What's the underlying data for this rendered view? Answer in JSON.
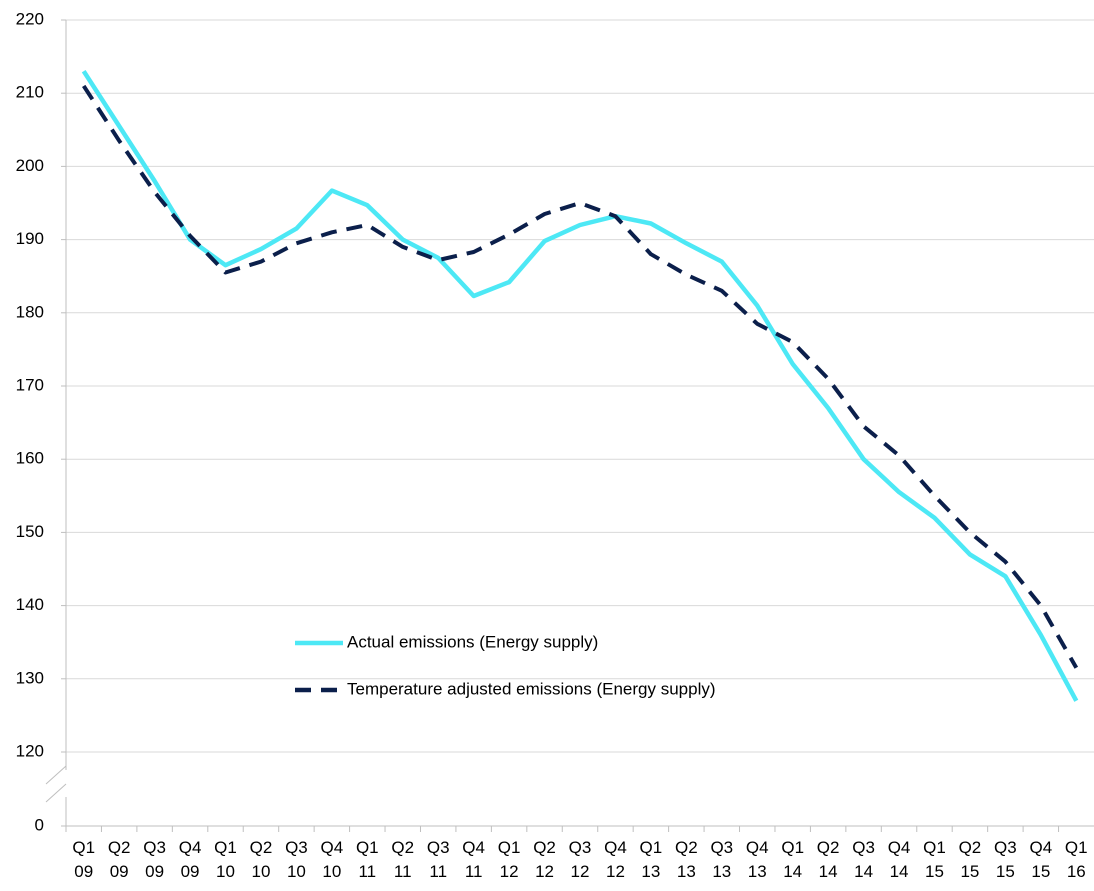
{
  "chart_data": {
    "type": "line",
    "categories": [
      "Q1 09",
      "Q2 09",
      "Q3 09",
      "Q4 09",
      "Q1 10",
      "Q2 10",
      "Q3 10",
      "Q4 10",
      "Q1 11",
      "Q2 11",
      "Q3 11",
      "Q4 11",
      "Q1 12",
      "Q2 12",
      "Q3 12",
      "Q4 12",
      "Q1 13",
      "Q2 13",
      "Q3 13",
      "Q4 13",
      "Q1 14",
      "Q2 14",
      "Q3 14",
      "Q4 14",
      "Q1 15",
      "Q2 15",
      "Q3 15",
      "Q4 15",
      "Q1 16"
    ],
    "series": [
      {
        "name": "Actual emissions (Energy supply)",
        "color": "#4de8f5",
        "dashed": false,
        "values": [
          213,
          205.5,
          198,
          190,
          186.5,
          188.7,
          191.5,
          196.7,
          194.7,
          190,
          187.5,
          182.3,
          184.2,
          189.8,
          192,
          193.2,
          192.2,
          189.5,
          187,
          181,
          173,
          167,
          160,
          155.5,
          152,
          147,
          144,
          136,
          127
        ]
      },
      {
        "name": "Temperature adjusted emissions (Energy supply)",
        "color": "#0b1f4b",
        "dashed": true,
        "values": [
          211,
          203.5,
          196.5,
          190.5,
          185.5,
          187,
          189.5,
          191,
          192,
          189,
          187.2,
          188.3,
          190.7,
          193.5,
          195,
          193.2,
          188,
          185.2,
          183,
          178.5,
          176,
          171,
          164.5,
          160.5,
          155,
          150,
          146,
          140,
          131.5
        ]
      }
    ],
    "ylim": [
      0,
      220
    ],
    "yticks": [
      0,
      120,
      130,
      140,
      150,
      160,
      170,
      180,
      190,
      200,
      210,
      220
    ],
    "axis_break": [
      0,
      120
    ],
    "grid": true,
    "legend": "lower-left"
  }
}
